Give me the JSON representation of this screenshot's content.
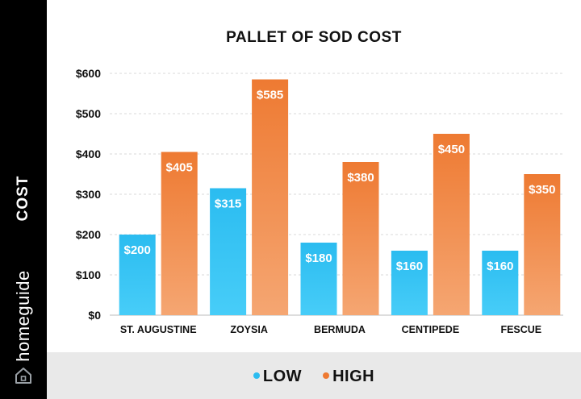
{
  "sidebar": {
    "axis_label": "COST",
    "brand": "homeguide",
    "brand_icon": "house-icon"
  },
  "colors": {
    "low_top": "#2bbcf0",
    "low_bottom": "#47cdf8",
    "high_top": "#ee7a32",
    "high_bottom": "#f5a672",
    "sidebar": "#000000",
    "legend_background": "#e9e9e9"
  },
  "chart_data": {
    "type": "bar",
    "title": "PALLET OF SOD COST",
    "ylabel": "COST",
    "xlabel": "",
    "categories": [
      "ST. AUGUSTINE",
      "ZOYSIA",
      "BERMUDA",
      "CENTIPEDE",
      "FESCUE"
    ],
    "series": [
      {
        "name": "LOW",
        "values": [
          200,
          315,
          180,
          160,
          160
        ],
        "labels": [
          "$200",
          "$315",
          "$180",
          "$160",
          "$160"
        ]
      },
      {
        "name": "HIGH",
        "values": [
          405,
          585,
          380,
          450,
          350
        ],
        "labels": [
          "$405",
          "$585",
          "$380",
          "$450",
          "$350"
        ]
      }
    ],
    "ylim": [
      0,
      600
    ],
    "yticks": [
      0,
      100,
      200,
      300,
      400,
      500,
      600
    ],
    "ytick_labels": [
      "$0",
      "$100",
      "$200",
      "$300",
      "$400",
      "$500",
      "$600"
    ],
    "grid": "horizontal dashed",
    "legend_position": "bottom"
  }
}
